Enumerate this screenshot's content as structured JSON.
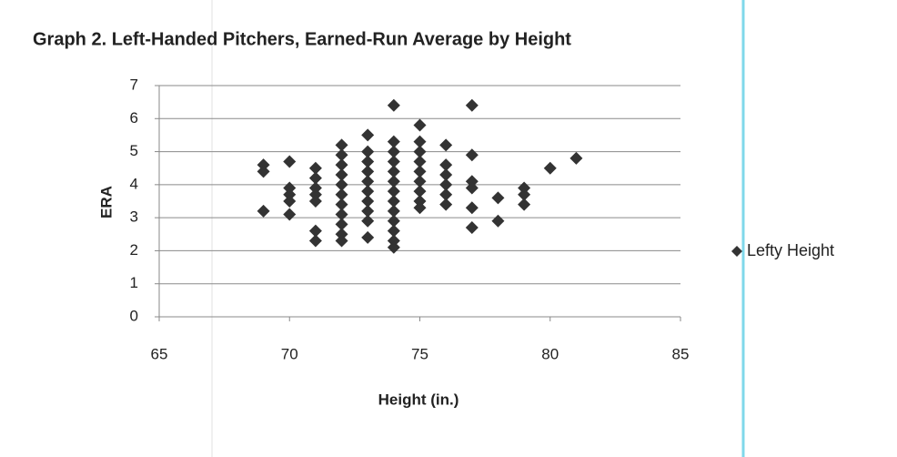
{
  "chart_data": {
    "type": "scatter",
    "title": "Graph 2. Left-Handed Pitchers, Earned-Run Average by Height",
    "x_label": "Height (in.)",
    "y_label": "ERA",
    "series": [
      {
        "name": "Lefty Height",
        "color": "#333333",
        "x": [
          69,
          69,
          69,
          70,
          70,
          70,
          70,
          70,
          71,
          71,
          71,
          71,
          71,
          71,
          71,
          72,
          72,
          72,
          72,
          72,
          72,
          72,
          72,
          72,
          72,
          72,
          73,
          73,
          73,
          73,
          73,
          73,
          73,
          73,
          73,
          73,
          74,
          74,
          74,
          74,
          74,
          74,
          74,
          74,
          74,
          74,
          74,
          74,
          74,
          75,
          75,
          75,
          75,
          75,
          75,
          75,
          75,
          75,
          76,
          76,
          76,
          76,
          76,
          76,
          77,
          77,
          77,
          77,
          77,
          77,
          78,
          78,
          79,
          79,
          79,
          80,
          81
        ],
        "values": [
          4.6,
          4.4,
          3.2,
          4.7,
          3.9,
          3.7,
          3.5,
          3.1,
          4.5,
          4.2,
          3.9,
          3.7,
          3.5,
          2.6,
          2.3,
          5.2,
          4.9,
          4.6,
          4.3,
          4.0,
          3.7,
          3.4,
          3.1,
          2.8,
          2.5,
          2.3,
          5.5,
          5.0,
          4.7,
          4.4,
          4.1,
          3.8,
          3.5,
          3.2,
          2.9,
          2.4,
          6.4,
          5.3,
          5.0,
          4.7,
          4.4,
          4.1,
          3.8,
          3.5,
          3.2,
          2.9,
          2.6,
          2.3,
          2.1,
          5.8,
          5.3,
          5.0,
          4.7,
          4.4,
          4.1,
          3.8,
          3.5,
          3.3,
          5.2,
          4.6,
          4.3,
          4.0,
          3.7,
          3.4,
          6.4,
          4.9,
          4.1,
          3.9,
          3.3,
          2.7,
          3.6,
          2.9,
          3.9,
          3.7,
          3.4,
          4.5,
          4.8
        ]
      }
    ],
    "xlim": [
      65,
      85
    ],
    "xticks": [
      65,
      70,
      75,
      80,
      85
    ],
    "ylim": [
      0,
      7
    ],
    "yticks": [
      0,
      1,
      2,
      3,
      4,
      5,
      6,
      7
    ],
    "grid": true,
    "legend": "right"
  }
}
